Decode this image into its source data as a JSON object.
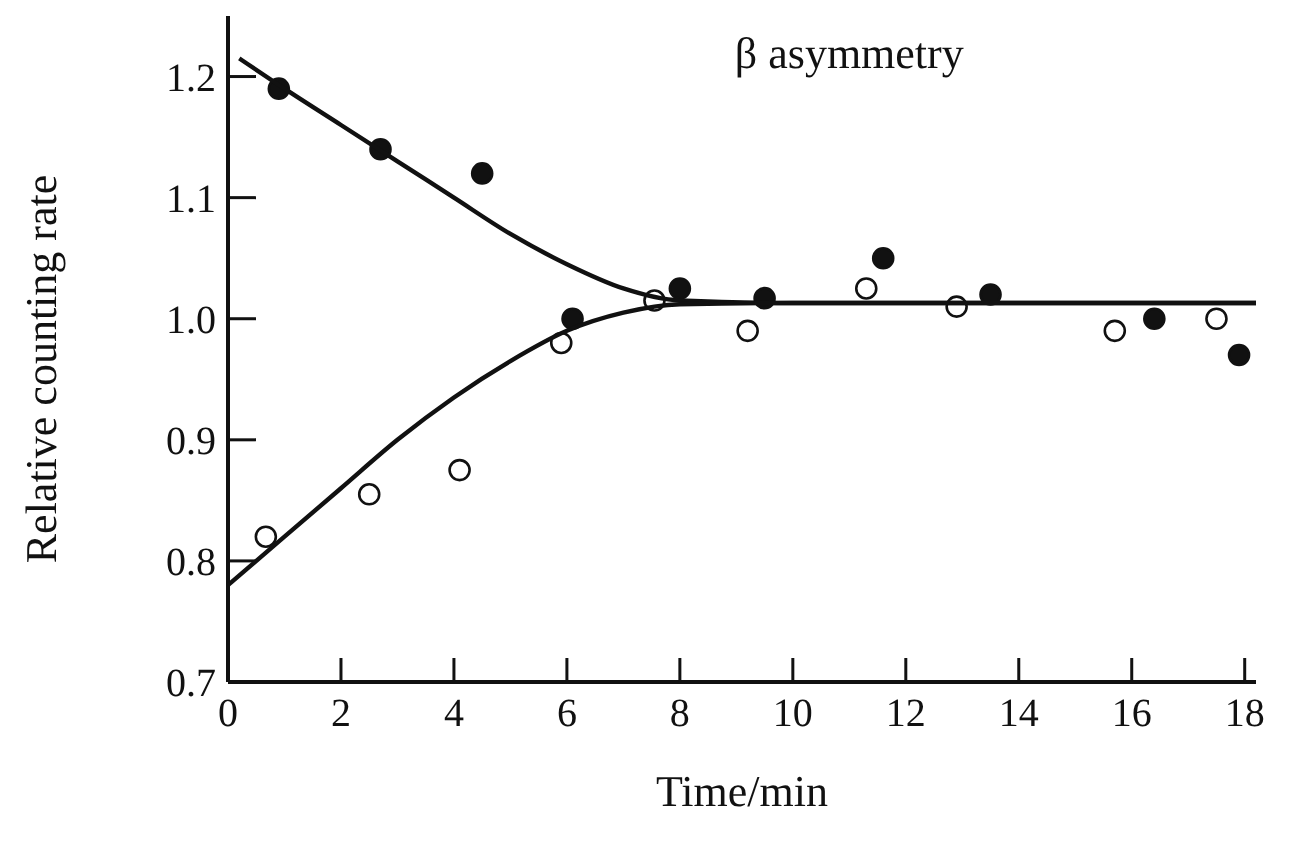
{
  "chart_data": {
    "type": "scatter",
    "title": "β asymmetry",
    "xlabel": "Time/min",
    "ylabel": "Relative counting rate",
    "xlim": [
      0,
      18.2
    ],
    "ylim": [
      0.7,
      1.25
    ],
    "xticks": [
      0,
      2,
      4,
      6,
      8,
      10,
      12,
      14,
      16,
      18
    ],
    "yticks": [
      0.7,
      0.8,
      0.9,
      {
        "value": 1,
        "label": "1.0"
      },
      1.1,
      1.2
    ],
    "grid": false,
    "marker": "circle",
    "series": [
      {
        "color": "#111111",
        "x": [
          0.9,
          2.7,
          4.5,
          6.1,
          8.0,
          9.5,
          11.6,
          13.5,
          16.4,
          17.9
        ],
        "values": [
          1.19,
          1.14,
          1.12,
          1.0,
          1.025,
          1.017,
          1.05,
          1.02,
          1.0,
          0.97
        ]
      },
      {
        "color": "#ffffff",
        "x": [
          0.67,
          2.5,
          4.1,
          5.9,
          7.55,
          9.2,
          11.3,
          12.9,
          15.7,
          17.5
        ],
        "values": [
          0.82,
          0.855,
          0.875,
          0.98,
          1.015,
          0.99,
          1.025,
          1.01,
          0.99,
          1.0
        ]
      },
      {
        "type": "line",
        "color": "#111111",
        "marker": "none",
        "x": [
          0.2,
          1,
          2,
          3,
          4,
          5,
          6,
          7,
          8,
          10,
          18.2
        ],
        "values": [
          1.215,
          1.19,
          1.16,
          1.13,
          1.1,
          1.07,
          1.045,
          1.025,
          1.015,
          1.013,
          1.013
        ]
      },
      {
        "type": "line",
        "color": "#111111",
        "marker": "none",
        "x": [
          0,
          1,
          2,
          3,
          4,
          5,
          6,
          7,
          8,
          10,
          18.2
        ],
        "values": [
          0.78,
          0.82,
          0.86,
          0.9,
          0.935,
          0.965,
          0.99,
          1.005,
          1.012,
          1.013,
          1.013
        ]
      }
    ]
  }
}
